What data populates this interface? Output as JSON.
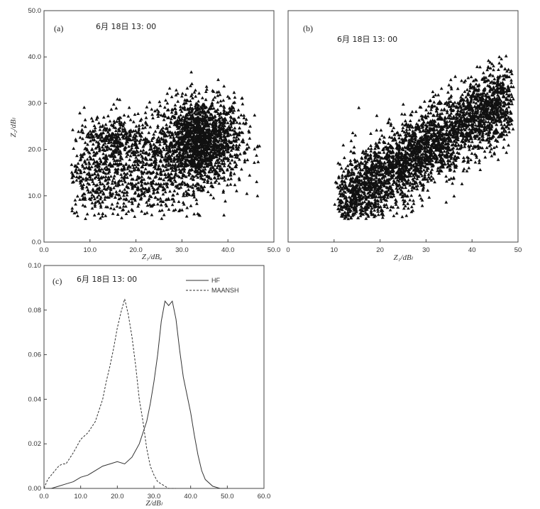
{
  "chart_data": [
    {
      "type": "scatter",
      "panel_label": "(a)",
      "stamp": "6月 18日 13: 00",
      "xlabel": "Z₁/dBₐ",
      "ylabel": "Z₂/dBₗ",
      "xlim": [
        0,
        50
      ],
      "ylim": [
        0,
        50
      ],
      "xticks": [
        "0.0",
        "10.0",
        "20.0",
        "30.0",
        "40.0",
        "50.0"
      ],
      "yticks": [
        "0.0",
        "10.0",
        "20.0",
        "30.0",
        "40.0",
        "50.0"
      ],
      "color": "#111111",
      "clusters": [
        {
          "center": [
            34,
            22
          ],
          "spread": [
            4.5,
            4.5
          ],
          "weight": 0.55
        },
        {
          "center": [
            20,
            16
          ],
          "spread": [
            8,
            6
          ],
          "weight": 0.33
        },
        {
          "center": [
            15,
            22
          ],
          "spread": [
            3,
            2
          ],
          "weight": 0.07
        },
        {
          "center": [
            10,
            12
          ],
          "spread": [
            4,
            4
          ],
          "weight": 0.05
        }
      ],
      "x_range_points": [
        6,
        47
      ],
      "y_range_points": [
        5,
        37
      ],
      "n_points": 3000
    },
    {
      "type": "scatter",
      "panel_label": "(b)",
      "stamp": "6月 18日 13: 00",
      "xlabel": "Z₁/dBₗ",
      "ylabel": "",
      "xlim": [
        0,
        50
      ],
      "ylim": [
        0,
        50
      ],
      "xticks": [
        "0",
        "10",
        "20",
        "30",
        "40",
        "50"
      ],
      "yticks": [],
      "color": "#111111",
      "relation": {
        "slope": 0.62,
        "intercept": 1.5,
        "noise_sd": 4.2
      },
      "x_range_points": [
        5,
        49
      ],
      "y_range_points": [
        5,
        41
      ],
      "n_points": 3200
    },
    {
      "type": "line",
      "panel_label": "(c)",
      "stamp": "6月 18日 13: 00",
      "xlabel": "Z/dBₗ",
      "ylabel": "",
      "xlim": [
        0,
        60
      ],
      "ylim": [
        0,
        0.1
      ],
      "xticks": [
        "0.0",
        "10.0",
        "20.0",
        "30.0",
        "40.0",
        "50.0",
        "60.0"
      ],
      "yticks": [
        "0.00",
        "0.02",
        "0.04",
        "0.06",
        "0.08",
        "0.10"
      ],
      "series": [
        {
          "name": "HF",
          "dash": "solid",
          "x": [
            0,
            2,
            4,
            6,
            8,
            10,
            12,
            14,
            16,
            18,
            20,
            22,
            24,
            26,
            28,
            29,
            30,
            31,
            32,
            33,
            34,
            35,
            36,
            37,
            38,
            39,
            40,
            41,
            42,
            43,
            44,
            46,
            48,
            50
          ],
          "values": [
            0.0,
            0.0,
            0.001,
            0.002,
            0.003,
            0.005,
            0.006,
            0.008,
            0.01,
            0.011,
            0.012,
            0.011,
            0.014,
            0.02,
            0.03,
            0.038,
            0.048,
            0.06,
            0.075,
            0.084,
            0.082,
            0.084,
            0.076,
            0.062,
            0.05,
            0.042,
            0.034,
            0.024,
            0.015,
            0.008,
            0.004,
            0.001,
            0.0,
            0.0
          ]
        },
        {
          "name": "MAANSH",
          "dash": "dashed",
          "x": [
            0,
            1,
            2,
            3,
            4,
            5,
            6,
            8,
            10,
            12,
            14,
            16,
            17,
            18,
            19,
            20,
            21,
            22,
            23,
            24,
            25,
            26,
            27,
            28,
            29,
            30,
            31,
            32,
            33,
            34,
            36
          ],
          "values": [
            0.0,
            0.004,
            0.006,
            0.008,
            0.01,
            0.011,
            0.011,
            0.016,
            0.022,
            0.025,
            0.03,
            0.04,
            0.048,
            0.055,
            0.063,
            0.072,
            0.079,
            0.085,
            0.078,
            0.068,
            0.055,
            0.04,
            0.03,
            0.018,
            0.01,
            0.006,
            0.003,
            0.002,
            0.001,
            0.0,
            0.0
          ]
        }
      ]
    }
  ]
}
